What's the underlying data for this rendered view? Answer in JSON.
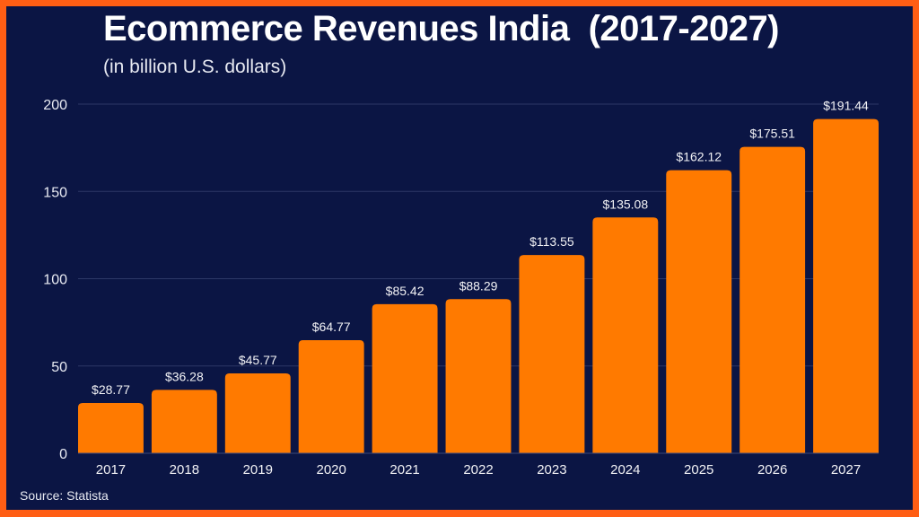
{
  "chart_data": {
    "type": "bar",
    "title": "Ecommerce Revenues India  (2017-2027)",
    "subtitle": "(in billion U.S. dollars)",
    "source": "Source: Statista",
    "categories": [
      "2017",
      "2018",
      "2019",
      "2020",
      "2021",
      "2022",
      "2023",
      "2024",
      "2025",
      "2026",
      "2027"
    ],
    "values": [
      28.77,
      36.28,
      45.77,
      64.77,
      85.42,
      88.29,
      113.55,
      135.08,
      162.12,
      175.51,
      191.44
    ],
    "data_labels": [
      "$28.77",
      "$36.28",
      "$45.77",
      "$64.77",
      "$85.42",
      "$88.29",
      "$113.55",
      "$135.08",
      "$162.12",
      "$175.51",
      "$191.44"
    ],
    "yticks": [
      0,
      50,
      100,
      150,
      200
    ],
    "ylim": [
      0,
      200
    ],
    "xlabel": "",
    "ylabel": "",
    "grid": true,
    "colors": {
      "bar": "#ff7a00",
      "background": "#0b1544",
      "border": "#ff5e14",
      "grid": "#2c3766"
    }
  }
}
